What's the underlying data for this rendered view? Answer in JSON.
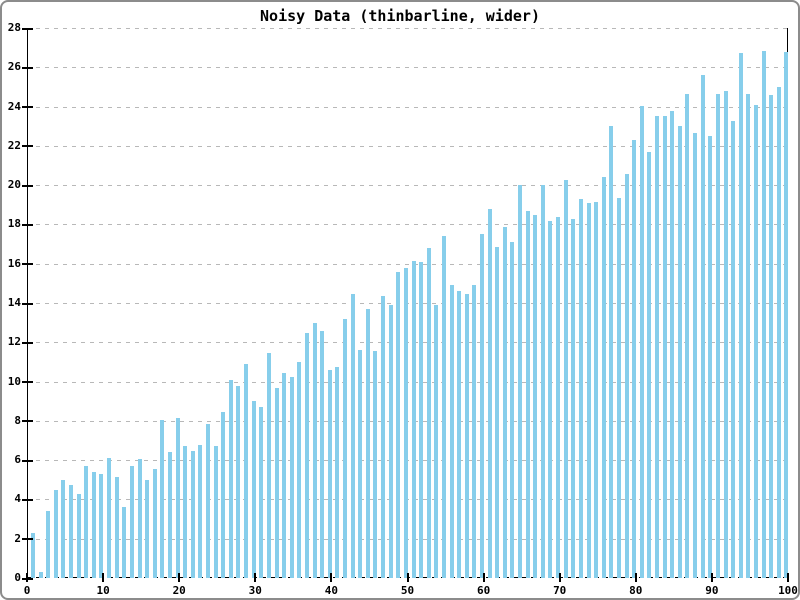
{
  "window": {
    "background": "#ffffff",
    "border_color": "#8c8c8c"
  },
  "chart_data": {
    "type": "bar",
    "title": "Noisy Data (thinbarline, wider)",
    "bar_color": "#87ceeb",
    "gridline_color": "#b8b8b8",
    "axis_color": "#000000",
    "grid": "horizontal dashed lines every 2 units; bottom zero-line dashed black",
    "legend": null,
    "xlabel": "",
    "ylabel": "",
    "xlim": [
      0,
      100
    ],
    "ylim": [
      0,
      28
    ],
    "x_ticks": [
      0,
      10,
      20,
      30,
      40,
      50,
      60,
      70,
      80,
      90,
      100
    ],
    "y_ticks": [
      0,
      2,
      4,
      6,
      8,
      10,
      12,
      14,
      16,
      18,
      20,
      22,
      24,
      26,
      28
    ],
    "x": [
      0,
      1,
      2,
      3,
      4,
      5,
      6,
      7,
      8,
      9,
      10,
      11,
      12,
      13,
      14,
      15,
      16,
      17,
      18,
      19,
      20,
      21,
      22,
      23,
      24,
      25,
      26,
      27,
      28,
      29,
      30,
      31,
      32,
      33,
      34,
      35,
      36,
      37,
      38,
      39,
      40,
      41,
      42,
      43,
      44,
      45,
      46,
      47,
      48,
      49,
      50,
      51,
      52,
      53,
      54,
      55,
      56,
      57,
      58,
      59,
      60,
      61,
      62,
      63,
      64,
      65,
      66,
      67,
      68,
      69,
      70,
      71,
      72,
      73,
      74,
      75,
      76,
      77,
      78,
      79,
      80,
      81,
      82,
      83,
      84,
      85,
      86,
      87,
      88,
      89,
      90,
      91,
      92,
      93,
      94,
      95,
      96,
      97,
      98,
      99
    ],
    "values": [
      2.3,
      0.3,
      3.4,
      4.5,
      5.0,
      4.75,
      4.3,
      5.7,
      5.4,
      5.3,
      6.1,
      5.15,
      3.6,
      5.7,
      6.05,
      5.0,
      5.55,
      8.05,
      6.4,
      8.15,
      6.7,
      6.45,
      6.75,
      7.85,
      6.7,
      8.45,
      10.1,
      9.8,
      10.9,
      9.0,
      8.7,
      11.45,
      9.65,
      10.45,
      10.25,
      11.0,
      12.45,
      13.0,
      12.6,
      10.6,
      10.75,
      13.2,
      14.45,
      11.6,
      13.7,
      11.55,
      14.35,
      13.9,
      15.6,
      15.8,
      16.15,
      16.1,
      16.8,
      13.9,
      17.4,
      14.9,
      14.6,
      14.45,
      14.9,
      17.5,
      18.8,
      16.85,
      17.85,
      17.1,
      20.0,
      18.7,
      18.5,
      20.0,
      18.2,
      18.4,
      20.25,
      18.3,
      19.3,
      19.1,
      19.15,
      20.4,
      23.0,
      19.35,
      20.55,
      22.3,
      24.05,
      21.7,
      23.5,
      23.5,
      23.8,
      23.0,
      24.65,
      22.65,
      25.6,
      22.5,
      24.65,
      24.8,
      23.25,
      26.75,
      24.65,
      24.1,
      26.85,
      24.6,
      25.0,
      26.8
    ]
  }
}
